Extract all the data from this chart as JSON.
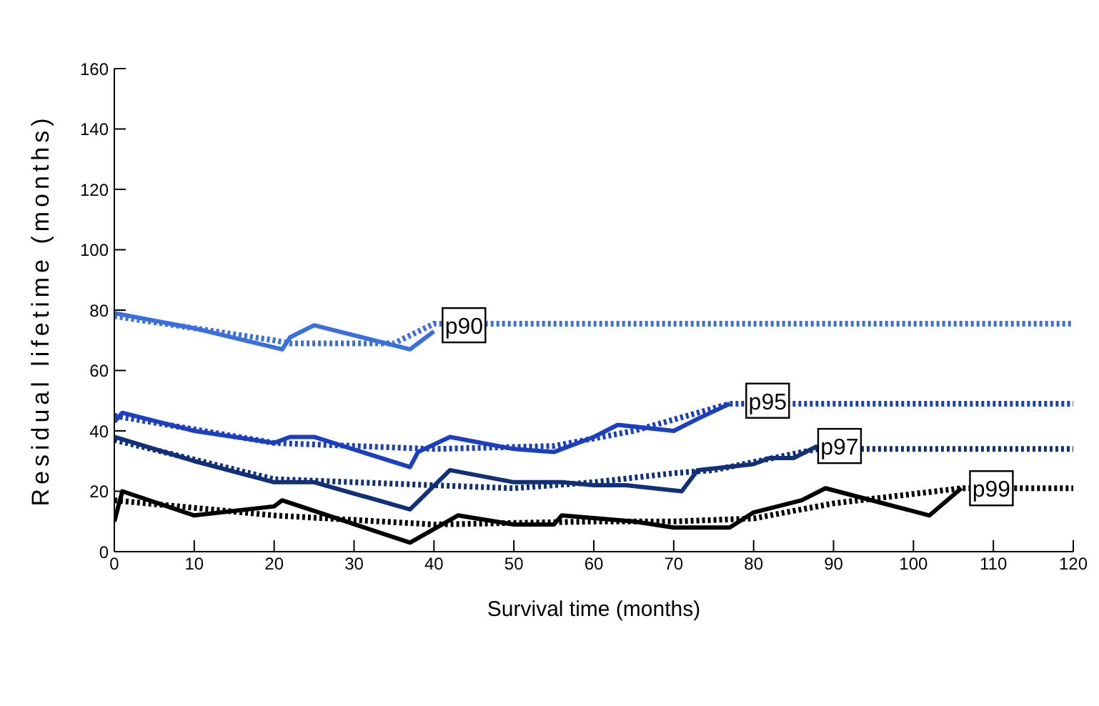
{
  "chart_data": {
    "type": "line",
    "xlabel": "Survival time (months)",
    "ylabel": "Residual lifetime (months)",
    "xlim": [
      0,
      120
    ],
    "ylim": [
      0,
      160
    ],
    "xticks": [
      0,
      10,
      20,
      30,
      40,
      50,
      60,
      70,
      80,
      90,
      100,
      110,
      120
    ],
    "yticks": [
      0,
      20,
      40,
      60,
      80,
      100,
      120,
      140,
      160
    ],
    "grid": false,
    "legend": false,
    "marker": "none",
    "series": [
      {
        "color": "#3a6fe0",
        "line_style": "solid",
        "x": [
          0,
          10,
          21,
          22,
          25,
          37,
          40
        ],
        "values": [
          79,
          74,
          67,
          71,
          75,
          67,
          73
        ]
      },
      {
        "color": "#3a6fe0",
        "line_style": "dotted",
        "x": [
          0,
          20,
          22,
          35,
          40,
          120
        ],
        "values": [
          78,
          70,
          69,
          69,
          75.5,
          75.5
        ]
      },
      {
        "color": "#1a3fc0",
        "line_style": "solid",
        "x": [
          0,
          1,
          10,
          20,
          22,
          25,
          37,
          38,
          42,
          50,
          55,
          60,
          63,
          70,
          73,
          77
        ],
        "values": [
          43,
          46,
          40,
          36,
          38,
          38,
          28,
          33,
          38,
          34,
          33,
          38,
          42,
          40,
          44,
          49
        ]
      },
      {
        "color": "#1a3fc0",
        "line_style": "dotted",
        "x": [
          0,
          20,
          30,
          40,
          55,
          65,
          77,
          120
        ],
        "values": [
          45,
          36,
          35,
          34,
          35,
          40,
          49,
          49
        ]
      },
      {
        "color": "#10307a",
        "line_style": "solid",
        "x": [
          0,
          10,
          20,
          25,
          37,
          42,
          50,
          56,
          60,
          64,
          71,
          73,
          80,
          82,
          85,
          88
        ],
        "values": [
          38,
          30,
          23,
          23,
          14,
          27,
          23,
          23,
          22,
          22,
          20,
          27,
          29,
          31,
          31,
          35
        ]
      },
      {
        "color": "#10307a",
        "line_style": "dotted",
        "x": [
          0,
          20,
          40,
          50,
          60,
          70,
          75,
          88,
          120
        ],
        "values": [
          37,
          24,
          22,
          21,
          23,
          26,
          27,
          34,
          34
        ]
      },
      {
        "color": "#000000",
        "line_style": "solid",
        "x": [
          0,
          1,
          10,
          20,
          21,
          37,
          43,
          50,
          55,
          56,
          65,
          70,
          77,
          80,
          86,
          89,
          102,
          106
        ],
        "values": [
          10,
          20,
          12,
          15,
          17,
          3,
          12,
          9,
          9,
          12,
          10,
          8,
          8,
          13,
          17,
          21,
          12,
          21
        ]
      },
      {
        "color": "#000000",
        "line_style": "dotted",
        "x": [
          0,
          20,
          40,
          60,
          70,
          80,
          90,
          106,
          120
        ],
        "values": [
          17,
          12,
          9,
          10,
          10,
          11,
          16,
          21,
          21
        ]
      }
    ],
    "annotations": [
      {
        "text": "p90",
        "x": 40,
        "y": 75
      },
      {
        "text": "p95",
        "x": 78,
        "y": 50
      },
      {
        "text": "p97",
        "x": 87,
        "y": 35
      },
      {
        "text": "p99",
        "x": 106,
        "y": 21
      }
    ]
  }
}
